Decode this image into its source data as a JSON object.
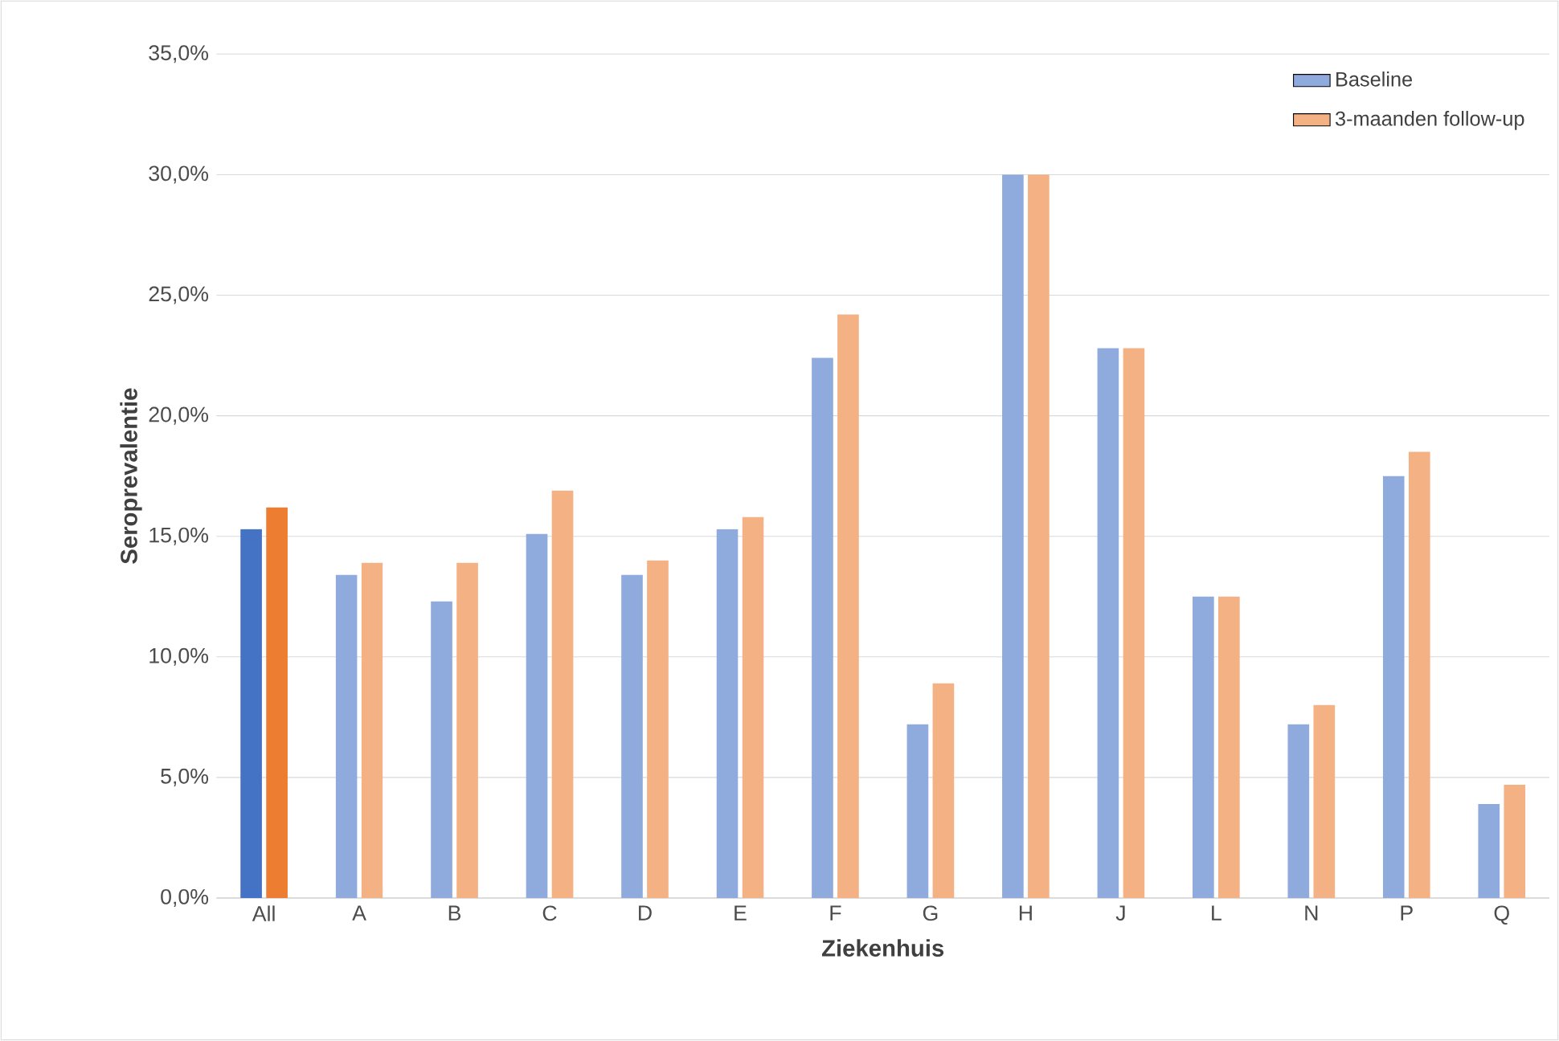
{
  "chart_data": {
    "type": "bar",
    "xlabel": "Ziekenhuis",
    "ylabel": "Seroprevalentie",
    "categories": [
      "All",
      "A",
      "B",
      "C",
      "D",
      "E",
      "F",
      "G",
      "H",
      "J",
      "L",
      "N",
      "P",
      "Q"
    ],
    "series": [
      {
        "name": "Baseline",
        "color": "#8faadc",
        "colors": [
          "#4472c4",
          "#8faadc",
          "#8faadc",
          "#8faadc",
          "#8faadc",
          "#8faadc",
          "#8faadc",
          "#8faadc",
          "#8faadc",
          "#8faadc",
          "#8faadc",
          "#8faadc",
          "#8faadc",
          "#8faadc"
        ],
        "values": [
          15.3,
          13.4,
          12.3,
          15.1,
          13.4,
          15.3,
          22.4,
          7.2,
          30.0,
          22.8,
          12.5,
          7.2,
          17.5,
          3.9
        ]
      },
      {
        "name": "3-maanden follow-up",
        "color": "#f4b183",
        "colors": [
          "#ed7d31",
          "#f4b183",
          "#f4b183",
          "#f4b183",
          "#f4b183",
          "#f4b183",
          "#f4b183",
          "#f4b183",
          "#f4b183",
          "#f4b183",
          "#f4b183",
          "#f4b183",
          "#f4b183",
          "#f4b183"
        ],
        "values": [
          16.2,
          13.9,
          13.9,
          16.9,
          14.0,
          15.8,
          24.2,
          8.9,
          30.0,
          22.8,
          12.5,
          8.0,
          18.5,
          4.7
        ]
      }
    ],
    "ylim": [
      0,
      35
    ],
    "yticks": [
      {
        "value": 0,
        "label": "0,0%"
      },
      {
        "value": 5,
        "label": "5,0%"
      },
      {
        "value": 10,
        "label": "10,0%"
      },
      {
        "value": 15,
        "label": "15,0%"
      },
      {
        "value": 20,
        "label": "20,0%"
      },
      {
        "value": 25,
        "label": "25,0%"
      },
      {
        "value": 30,
        "label": "30,0%"
      },
      {
        "value": 35,
        "label": "35,0%"
      }
    ],
    "grid": "y",
    "legend": "top right"
  }
}
